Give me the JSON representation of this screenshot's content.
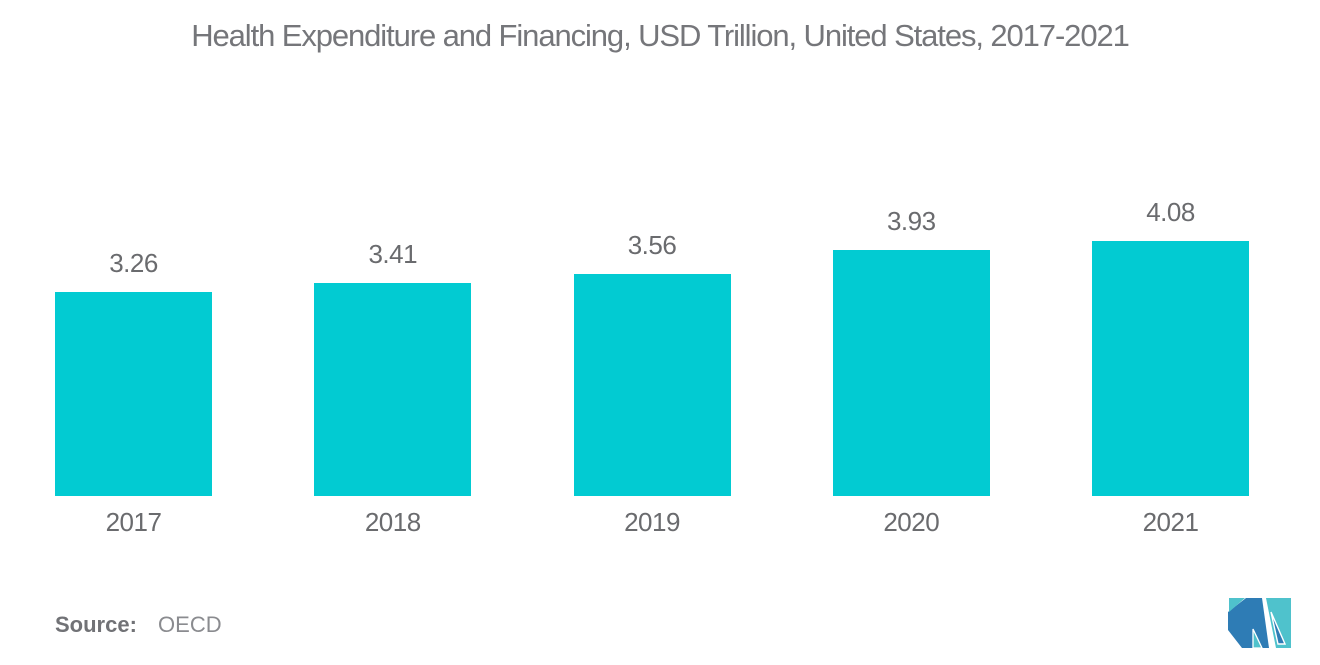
{
  "chart_data": {
    "type": "bar",
    "title": "Health Expenditure and Financing, USD Trillion, United States, 2017-2021",
    "categories": [
      "2017",
      "2018",
      "2019",
      "2020",
      "2021"
    ],
    "values": [
      3.26,
      3.41,
      3.56,
      3.93,
      4.08
    ],
    "value_labels": [
      "3.26",
      "3.41",
      "3.56",
      "3.93",
      "4.08"
    ],
    "ylim": [
      0,
      4.3
    ],
    "grid": false,
    "legend": false,
    "axis_lines": false,
    "bar_color": "#02CBD2",
    "label_color": "#6A6B6E",
    "title_color": "#75767A"
  },
  "source": {
    "label": "Source:",
    "value": "OECD"
  },
  "logo": {
    "name": "mordor-intelligence-logo",
    "dark_blue": "#2E7CB5",
    "teal": "#4FC2CC"
  }
}
